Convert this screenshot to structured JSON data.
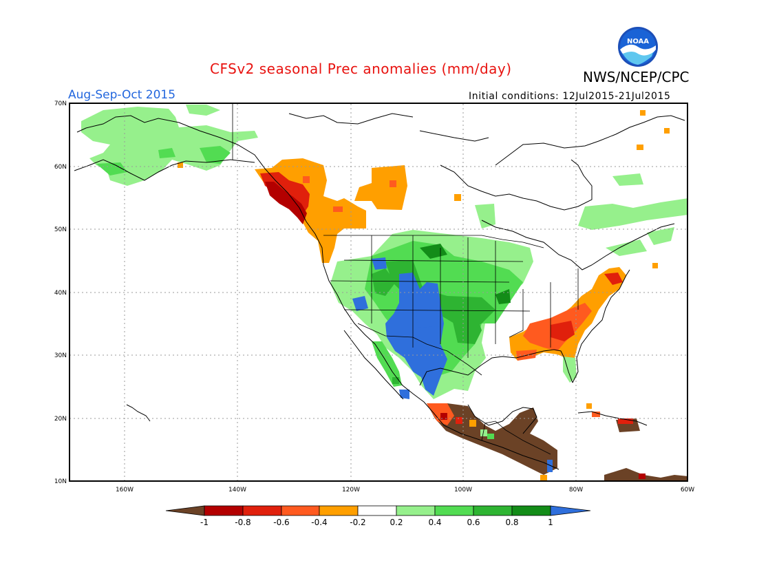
{
  "header": {
    "title": "CFSv2 seasonal Prec anomalies (mm/day)",
    "agency": "NWS/NCEP/CPC",
    "season": "Aug-Sep-Oct 2015",
    "initial_conditions": "Initial conditions: 12Jul2015-21Jul2015",
    "logo_text": "NOAA"
  },
  "map": {
    "lat_labels": [
      "70N",
      "60N",
      "50N",
      "40N",
      "30N",
      "20N",
      "10N"
    ],
    "lon_labels": [
      "160W",
      "140W",
      "120W",
      "100W",
      "80W",
      "60W"
    ]
  },
  "colorbar": {
    "labels": [
      "-1",
      "-0.8",
      "-0.6",
      "-0.4",
      "-0.2",
      "0.2",
      "0.4",
      "0.6",
      "0.8",
      "1"
    ],
    "colors": {
      "below_min": "#6b4226",
      "-1_-0.8": "#b30000",
      "-0.8_-0.6": "#e0200c",
      "-0.6_-0.4": "#ff5a1f",
      "-0.4_-0.2": "#ff9f00",
      "-0.2_0.2": "#ffffff",
      "0.2_0.4": "#96f08c",
      "0.4_0.6": "#52dc52",
      "0.6_0.8": "#2eb432",
      "0.8_1": "#138c18",
      "above_max": "#2f6fdc"
    }
  }
}
